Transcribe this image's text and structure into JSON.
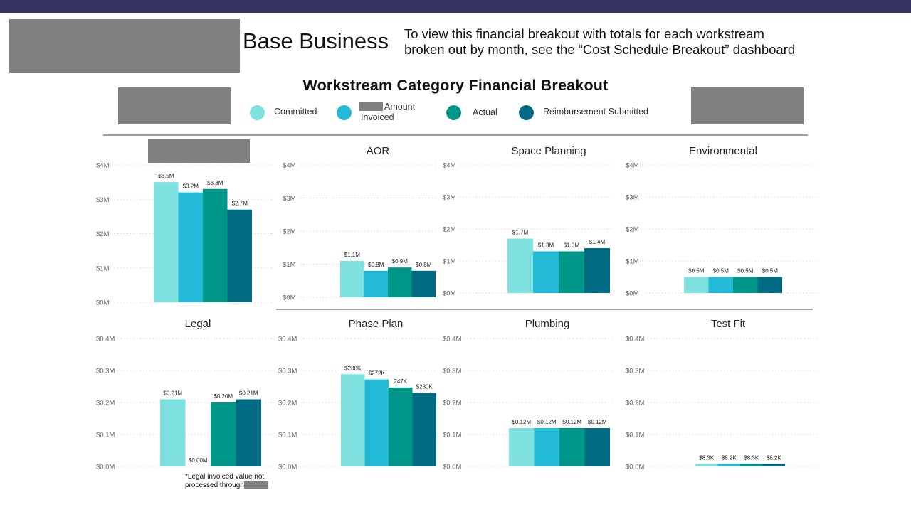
{
  "header": {
    "page_title": "Base Business",
    "note": "To view this financial breakout with totals for each workstream broken out by month, see the “Cost Schedule Breakout” dashboard"
  },
  "colors": {
    "topbar": "#343260",
    "redaction": "#808080",
    "committed": "#7fe0e0",
    "amount_invoiced": "#22bad6",
    "actual": "#00978a",
    "reimbursement_submitted": "#006b82"
  },
  "chart_title": "Workstream Category Financial Breakout",
  "legend": [
    {
      "label": "Committed",
      "color": "#7fe0e0"
    },
    {
      "label": "Amount",
      "label2": "Invoiced",
      "color": "#22bad6"
    },
    {
      "label": "Actual",
      "color": "#00978a"
    },
    {
      "label": "Reimbursement Submitted",
      "color": "#006b82"
    }
  ],
  "footnote": {
    "line1": "*Legal invoiced value not",
    "line2": "processed through"
  },
  "chart_data": [
    {
      "type": "bar",
      "title": "",
      "title_redacted": true,
      "series_names": [
        "Committed",
        "Amount Invoiced",
        "Actual",
        "Reimbursement Submitted"
      ],
      "values": [
        3.5,
        3.2,
        3.3,
        2.7
      ],
      "labels": [
        "$3.5M",
        "$3.2M",
        "$3.3M",
        "$2.7M"
      ],
      "ylim": [
        0,
        4
      ],
      "yticks": [
        "$0M",
        "$1M",
        "$2M",
        "$3M",
        "$4M"
      ]
    },
    {
      "type": "bar",
      "title": "AOR",
      "series_names": [
        "Committed",
        "Amount Invoiced",
        "Actual",
        "Reimbursement Submitted"
      ],
      "values": [
        1.1,
        0.8,
        0.9,
        0.8
      ],
      "labels": [
        "$1.1M",
        "$0.8M",
        "$0.9M",
        "$0.8M"
      ],
      "ylim": [
        0,
        4
      ],
      "yticks": [
        "$0M",
        "$1M",
        "$2M",
        "$3M",
        "$4M"
      ]
    },
    {
      "type": "bar",
      "title": "Space Planning",
      "series_names": [
        "Committed",
        "Amount Invoiced",
        "Actual",
        "Reimbursement Submitted"
      ],
      "values": [
        1.7,
        1.3,
        1.3,
        1.4
      ],
      "labels": [
        "$1.7M",
        "$1.3M",
        "$1.3M",
        "$1.4M"
      ],
      "ylim": [
        0,
        4
      ],
      "yticks": [
        "$0M",
        "$1M",
        "$2M",
        "$3M",
        "$4M"
      ]
    },
    {
      "type": "bar",
      "title": "Environmental",
      "series_names": [
        "Committed",
        "Amount Invoiced",
        "Actual",
        "Reimbursement Submitted"
      ],
      "values": [
        0.5,
        0.5,
        0.5,
        0.5
      ],
      "labels": [
        "$0.5M",
        "$0.5M",
        "$0.5M",
        "$0.5M"
      ],
      "ylim": [
        0,
        4
      ],
      "yticks": [
        "$0M",
        "$1M",
        "$2M",
        "$3M",
        "$4M"
      ]
    },
    {
      "type": "bar",
      "title": "Legal",
      "series_names": [
        "Committed",
        "Amount Invoiced",
        "Actual",
        "Reimbursement Submitted"
      ],
      "values": [
        0.21,
        0.0,
        0.2,
        0.21
      ],
      "labels": [
        "$0.21M",
        "$0.00M",
        "$0.20M",
        "$0.21M"
      ],
      "ylim": [
        0,
        0.4
      ],
      "yticks": [
        "$0.0M",
        "$0.1M",
        "$0.2M",
        "$0.3M",
        "$0.4M"
      ]
    },
    {
      "type": "bar",
      "title": "Phase Plan",
      "series_names": [
        "Committed",
        "Amount Invoiced",
        "Actual",
        "Reimbursement Submitted"
      ],
      "values": [
        0.288,
        0.272,
        0.247,
        0.23
      ],
      "labels": [
        "$288K",
        "$272K",
        "247K",
        "$230K"
      ],
      "ylim": [
        0,
        0.4
      ],
      "yticks": [
        "$0.0M",
        "$0.1M",
        "$0.2M",
        "$0.3M",
        "$0.4M"
      ]
    },
    {
      "type": "bar",
      "title": "Plumbing",
      "series_names": [
        "Committed",
        "Amount Invoiced",
        "Actual",
        "Reimbursement Submitted"
      ],
      "values": [
        0.12,
        0.12,
        0.12,
        0.12
      ],
      "labels": [
        "$0.12M",
        "$0.12M",
        "$0.12M",
        "$0.12M"
      ],
      "ylim": [
        0,
        0.4
      ],
      "yticks": [
        "$0.0M",
        "$0.1M",
        "$0.2M",
        "$0.3M",
        "$0.4M"
      ]
    },
    {
      "type": "bar",
      "title": "Test Fit",
      "series_names": [
        "Committed",
        "Amount Invoiced",
        "Actual",
        "Reimbursement Submitted"
      ],
      "values": [
        0.0083,
        0.0082,
        0.0083,
        0.0082
      ],
      "labels": [
        "$8.3K",
        "$8.2K",
        "$8.3K",
        "$8.2K"
      ],
      "ylim": [
        0,
        0.4
      ],
      "yticks": [
        "$0.0M",
        "$0.1M",
        "$0.2M",
        "$0.3M",
        "$0.4M"
      ]
    }
  ]
}
